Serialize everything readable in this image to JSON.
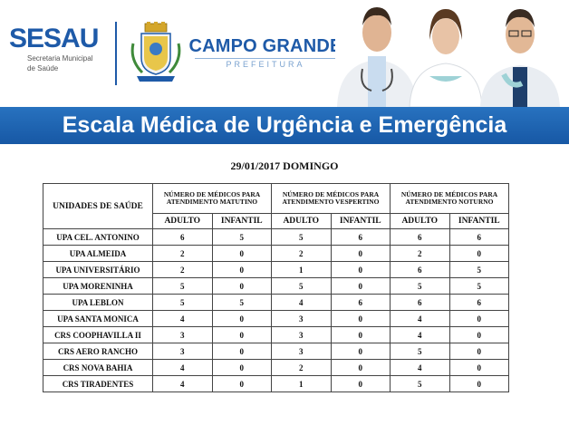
{
  "header": {
    "sesau": "SESAU",
    "sesau_sub_line1": "Secretaria Municipal",
    "sesau_sub_line2": "de Saúde",
    "city": "CAMPO GRANDE",
    "city_sub": "PREFEITURA"
  },
  "banner": {
    "title": "Escala Médica de Urgência e Emergência"
  },
  "schedule": {
    "date_line": "29/01/2017 DOMINGO",
    "unit_header": "UNIDADES DE SAÚDE",
    "shift_headers": [
      "NÚMERO DE MÉDICOS PARA ATENDIMENTO MATUTINO",
      "NÚMERO DE MÉDICOS PARA ATENDIMENTO VESPERTINO",
      "NÚMERO DE MÉDICOS PARA ATENDIMENTO NOTURNO"
    ],
    "sub_headers": [
      "ADULTO",
      "INFANTIL",
      "ADULTO",
      "INFANTIL",
      "ADULTO",
      "INFANTIL"
    ],
    "rows": [
      {
        "unit": "UPA CEL. ANTONINO",
        "values": [
          "6",
          "5",
          "5",
          "6",
          "6",
          "6"
        ]
      },
      {
        "unit": "UPA ALMEIDA",
        "values": [
          "2",
          "0",
          "2",
          "0",
          "2",
          "0"
        ]
      },
      {
        "unit": "UPA UNIVERSITÁRIO",
        "values": [
          "2",
          "0",
          "1",
          "0",
          "6",
          "5"
        ]
      },
      {
        "unit": "UPA MORENINHA",
        "values": [
          "5",
          "0",
          "5",
          "0",
          "5",
          "5"
        ]
      },
      {
        "unit": "UPA LEBLON",
        "values": [
          "5",
          "5",
          "4",
          "6",
          "6",
          "6"
        ]
      },
      {
        "unit": "UPA SANTA MONICA",
        "values": [
          "4",
          "0",
          "3",
          "0",
          "4",
          "0"
        ]
      },
      {
        "unit": "CRS COOPHAVILLA II",
        "values": [
          "3",
          "0",
          "3",
          "0",
          "4",
          "0"
        ]
      },
      {
        "unit": "CRS AERO RANCHO",
        "values": [
          "3",
          "0",
          "3",
          "0",
          "5",
          "0"
        ]
      },
      {
        "unit": "CRS NOVA BAHIA",
        "values": [
          "4",
          "0",
          "2",
          "0",
          "4",
          "0"
        ]
      },
      {
        "unit": "CRS TIRADENTES",
        "values": [
          "4",
          "0",
          "1",
          "0",
          "5",
          "0"
        ]
      }
    ]
  },
  "colors": {
    "brand_blue": "#1e5aa8",
    "banner_blue": "#1f65b3"
  }
}
